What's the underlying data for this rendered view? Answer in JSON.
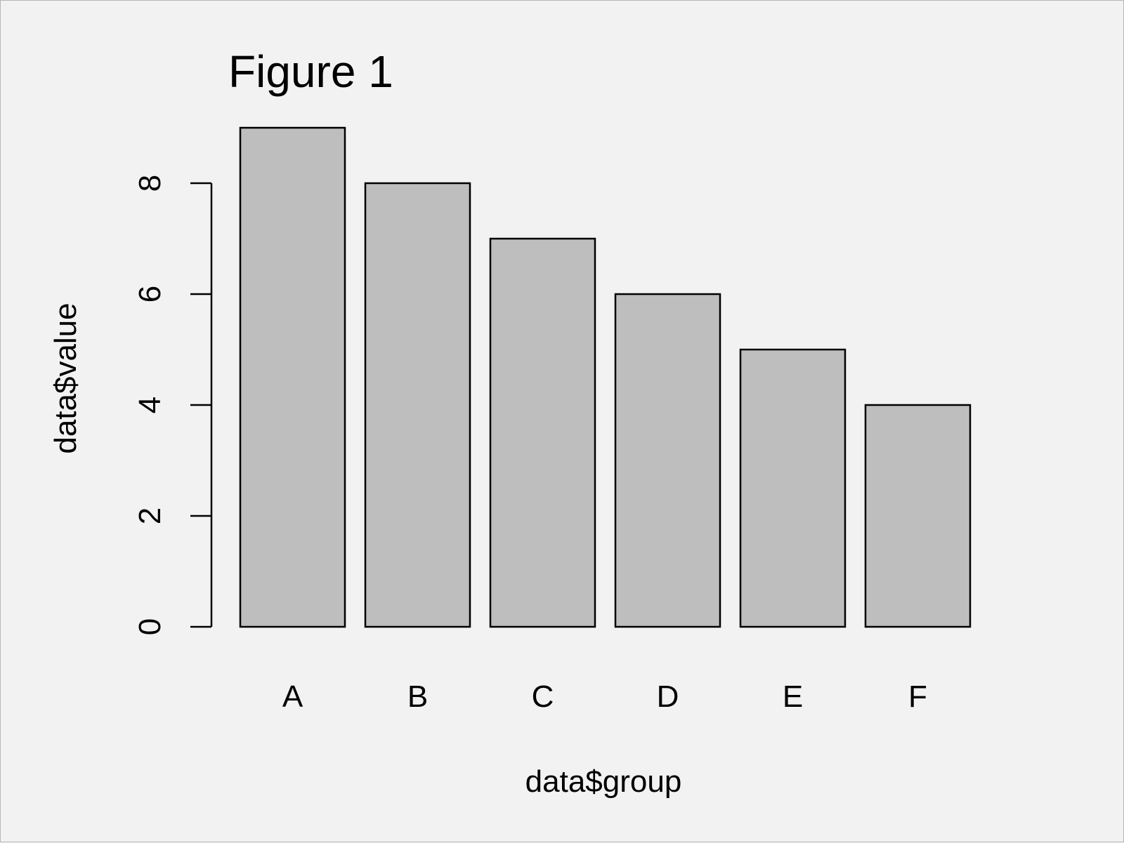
{
  "chart_data": {
    "type": "bar",
    "title": "Figure 1",
    "xlabel": "data$group",
    "ylabel": "data$value",
    "categories": [
      "A",
      "B",
      "C",
      "D",
      "E",
      "F"
    ],
    "values": [
      9,
      8,
      7,
      6,
      5,
      4
    ],
    "ylim": [
      0,
      9
    ],
    "yticks": [
      "0",
      "2",
      "4",
      "6",
      "8"
    ],
    "grid": false,
    "bar_color": "#bebebe",
    "bar_edge_color": "#000000",
    "background_color": "#f2f2f2"
  }
}
